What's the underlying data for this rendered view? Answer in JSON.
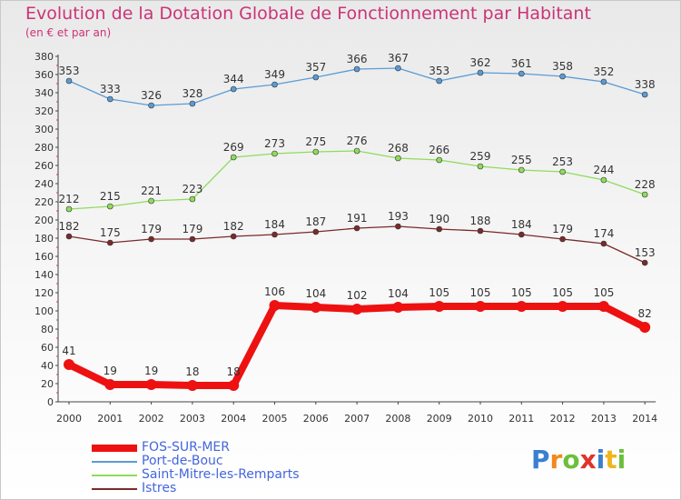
{
  "title": "Evolution de la Dotation Globale de Fonctionnement par Habitant",
  "subtitle": "(en € et par an)",
  "logo_text": "Proxiti",
  "chart_data": {
    "type": "line",
    "title": "Evolution de la Dotation Globale de Fonctionnement par Habitant",
    "ylabel": "(en € et par an)",
    "xlabel": "",
    "ylim": [
      0,
      380
    ],
    "ytick_step": 20,
    "grid": false,
    "legend_position": "bottom-left",
    "categories": [
      "2000",
      "2001",
      "2002",
      "2003",
      "2004",
      "2005",
      "2006",
      "2007",
      "2008",
      "2009",
      "2010",
      "2011",
      "2012",
      "2013",
      "2014"
    ],
    "series": [
      {
        "name": "FOS-SUR-MER",
        "color": "#ee1111",
        "style": "bold",
        "values": [
          41,
          19,
          19,
          18,
          18,
          106,
          104,
          102,
          104,
          105,
          105,
          105,
          105,
          105,
          82
        ]
      },
      {
        "name": "Port-de-Bouc",
        "color": "#5b9bd5",
        "style": "thin",
        "values": [
          353,
          333,
          326,
          328,
          344,
          349,
          357,
          366,
          367,
          353,
          362,
          361,
          358,
          352,
          338
        ]
      },
      {
        "name": "Saint-Mitre-les-Remparts",
        "color": "#8fdc5c",
        "style": "thin",
        "values": [
          212,
          215,
          221,
          223,
          269,
          273,
          275,
          276,
          268,
          266,
          259,
          255,
          253,
          244,
          228
        ]
      },
      {
        "name": "Istres",
        "color": "#7a2a2a",
        "style": "thin",
        "values": [
          182,
          175,
          179,
          179,
          182,
          184,
          187,
          191,
          193,
          190,
          188,
          184,
          179,
          174,
          153
        ]
      }
    ]
  }
}
